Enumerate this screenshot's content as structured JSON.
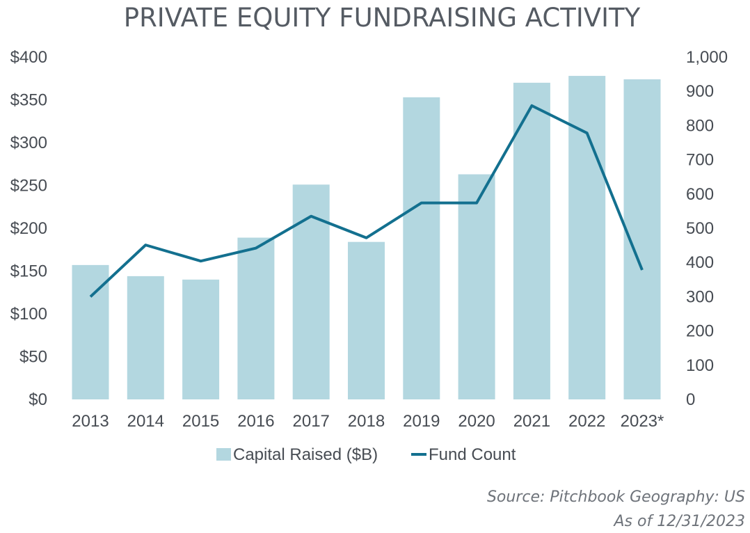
{
  "colors": {
    "bar": "#b3d7e0",
    "line": "#13708f",
    "text": "#474c53",
    "title": "#555b63",
    "source": "#6e737a"
  },
  "chart_data": {
    "type": "bar+line",
    "title": "PRIVATE EQUITY FUNDRAISING ACTIVITY",
    "categories": [
      "2013",
      "2014",
      "2015",
      "2016",
      "2017",
      "2018",
      "2019",
      "2020",
      "2021",
      "2022",
      "2023*"
    ],
    "series": [
      {
        "name": "Capital Raised ($B)",
        "type": "bar",
        "axis": "left",
        "values": [
          157,
          144,
          140,
          189,
          251,
          184,
          353,
          263,
          370,
          378,
          374
        ]
      },
      {
        "name": "Fund Count",
        "type": "line",
        "axis": "right",
        "values": [
          300,
          451,
          404,
          442,
          535,
          472,
          574,
          574,
          858,
          778,
          378
        ]
      }
    ],
    "left_axis": {
      "min": 0,
      "max": 400,
      "step": 50,
      "tick_labels": [
        "$0",
        "$50",
        "$100",
        "$150",
        "$200",
        "$250",
        "$300",
        "$350",
        "$400"
      ]
    },
    "right_axis": {
      "min": 0,
      "max": 1000,
      "step": 100,
      "tick_labels": [
        "0",
        "100",
        "200",
        "300",
        "400",
        "500",
        "600",
        "700",
        "800",
        "900",
        "1,000"
      ]
    },
    "legend": {
      "position": "bottom",
      "items": [
        "Capital Raised ($B)",
        "Fund Count"
      ]
    },
    "grid": false
  },
  "source": {
    "line1": "Source: Pitchbook Geography: US",
    "line2": "As of 12/31/2023"
  }
}
